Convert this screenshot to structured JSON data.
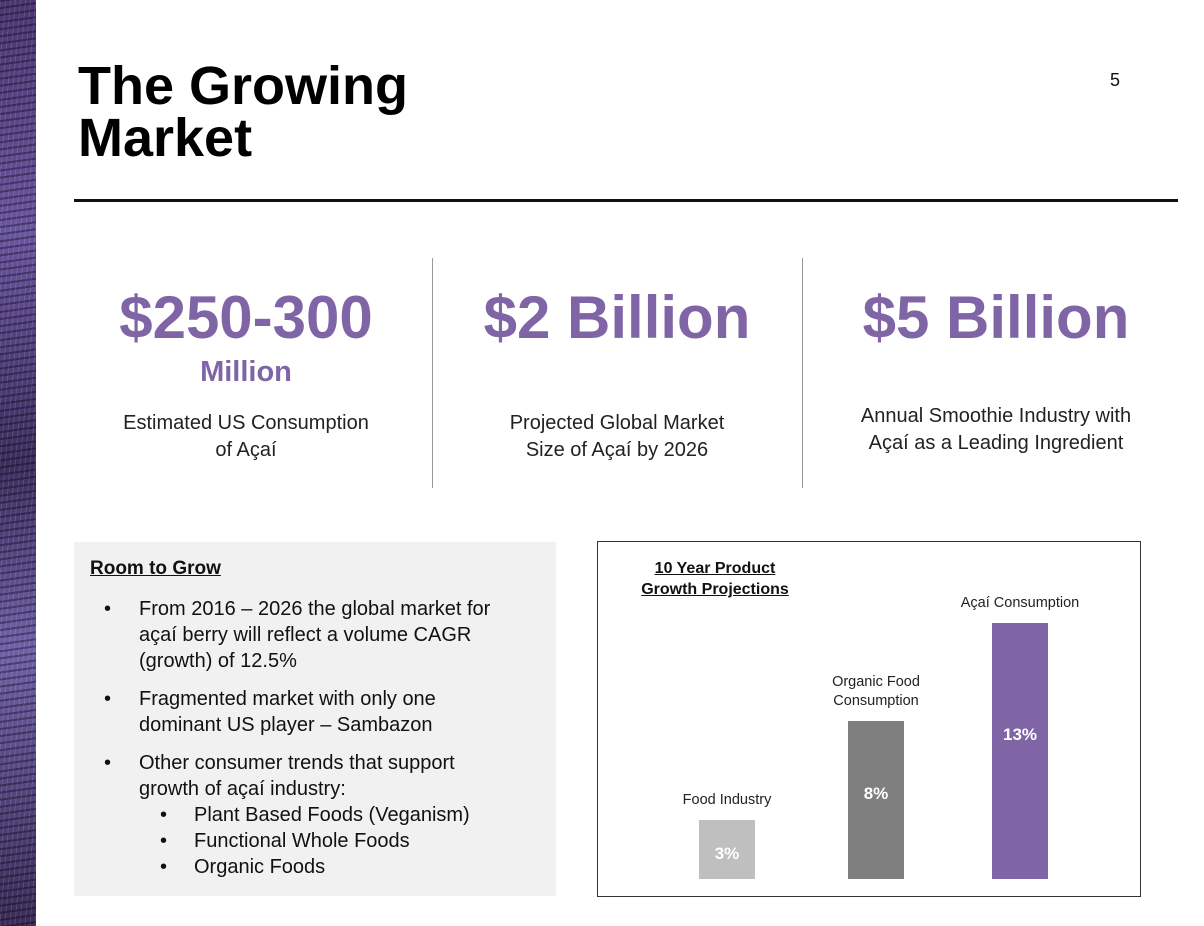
{
  "slide": {
    "title": "The Growing Market",
    "page_number": "5"
  },
  "stats": [
    {
      "value": "$250-300",
      "unit": "Million",
      "desc_line1": "Estimated US Consumption",
      "desc_line2": "of Açaí"
    },
    {
      "value": "$2 Billion",
      "unit": "",
      "desc_line1": "Projected Global Market",
      "desc_line2": "Size of Açaí by 2026"
    },
    {
      "value": "$5 Billion",
      "unit": "",
      "desc_line1": "Annual Smoothie Industry with",
      "desc_line2": "Açaí as a Leading Ingredient"
    }
  ],
  "room_to_grow": {
    "title": "Room to Grow",
    "b1_l1": "From 2016 – 2026 the global market for",
    "b1_l2": "açaí berry will reflect a volume CAGR",
    "b1_l3": "(growth) of 12.5%",
    "b2_l1": "Fragmented market with only one",
    "b2_l2": "dominant US player – Sambazon",
    "b3_l1": "Other consumer trends that support",
    "b3_l2": "growth of açaí industry:",
    "sub1": "Plant Based Foods (Veganism)",
    "sub2": "Functional Whole Foods",
    "sub3": "Organic Foods",
    "bullet_char": "•"
  },
  "chart_data": {
    "type": "bar",
    "title": "10 Year Product Growth Projections",
    "title_line1": "10 Year Product",
    "title_line2": "Growth Projections",
    "categories": [
      "Food Industry",
      "Organic Food Consumption",
      "Açaí Consumption"
    ],
    "category_lines": [
      [
        "Food Industry"
      ],
      [
        "Organic Food",
        "Consumption"
      ],
      [
        "Açaí Consumption"
      ]
    ],
    "values": [
      3,
      8,
      13
    ],
    "value_labels": [
      "3%",
      "8%",
      "13%"
    ],
    "colors": [
      "#bfbfbf",
      "#7f7f7f",
      "#8065a6"
    ],
    "ylim": [
      0,
      13
    ],
    "xlabel": "",
    "ylabel": ""
  }
}
